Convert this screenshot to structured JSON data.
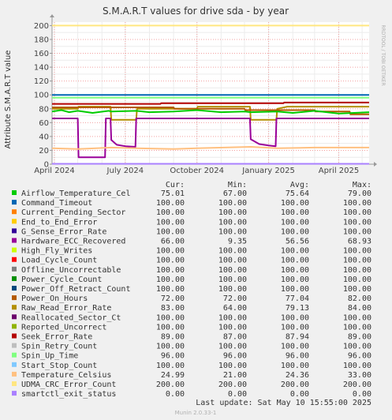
{
  "chart_data": {
    "type": "line",
    "title": "S.M.A.R.T values for drive sda - by year",
    "ylabel": "Attribute S.M.A.R.T value",
    "side_label": "RRDTOOL / TOBI OETIKER",
    "ylim": [
      0,
      205
    ],
    "y_ticks": [
      "0",
      "20",
      "40",
      "60",
      "80",
      "100",
      "120",
      "140",
      "160",
      "180",
      "200"
    ],
    "x_ticks": [
      "April 2024",
      "July 2024",
      "October 2024",
      "January 2025",
      "April 2025"
    ],
    "x_range": [
      "2024-03-29",
      "2025-05-10"
    ],
    "x_tick_dates": [
      "2024-04-01",
      "2024-07-01",
      "2024-10-01",
      "2025-01-01",
      "2025-04-01"
    ],
    "columns": [
      "Cur:",
      "Min:",
      "Avg:",
      "Max:"
    ],
    "series": [
      {
        "name": "Airflow_Temperature_Cel",
        "color": "#00cc00",
        "cur": "75.01",
        "min": "67.00",
        "avg": "75.64",
        "max": "79.00"
      },
      {
        "name": "Command_Timeout",
        "color": "#0066b3",
        "cur": "100.00",
        "min": "100.00",
        "avg": "100.00",
        "max": "100.00"
      },
      {
        "name": "Current_Pending_Sector",
        "color": "#ff8000",
        "cur": "100.00",
        "min": "100.00",
        "avg": "100.00",
        "max": "100.00"
      },
      {
        "name": "End_to_End_Error",
        "color": "#ffcc00",
        "cur": "100.00",
        "min": "100.00",
        "avg": "100.00",
        "max": "100.00"
      },
      {
        "name": "G_Sense_Error_Rate",
        "color": "#330099",
        "cur": "100.00",
        "min": "100.00",
        "avg": "100.00",
        "max": "100.00"
      },
      {
        "name": "Hardware_ECC_Recovered",
        "color": "#990099",
        "cur": "66.00",
        "min": "9.35",
        "avg": "56.56",
        "max": "68.93"
      },
      {
        "name": "High_Fly_Writes",
        "color": "#ccff00",
        "cur": "100.00",
        "min": "100.00",
        "avg": "100.00",
        "max": "100.00"
      },
      {
        "name": "Load_Cycle_Count",
        "color": "#ff0000",
        "cur": "100.00",
        "min": "100.00",
        "avg": "100.00",
        "max": "100.00"
      },
      {
        "name": "Offline_Uncorrectable",
        "color": "#808080",
        "cur": "100.00",
        "min": "100.00",
        "avg": "100.00",
        "max": "100.00"
      },
      {
        "name": "Power_Cycle_Count",
        "color": "#008f00",
        "cur": "100.00",
        "min": "100.00",
        "avg": "100.00",
        "max": "100.00"
      },
      {
        "name": "Power_Off_Retract_Count",
        "color": "#00487d",
        "cur": "100.00",
        "min": "100.00",
        "avg": "100.00",
        "max": "100.00"
      },
      {
        "name": "Power_On_Hours",
        "color": "#b35a00",
        "cur": "72.00",
        "min": "72.00",
        "avg": "77.04",
        "max": "82.00"
      },
      {
        "name": "Raw_Read_Error_Rate",
        "color": "#b38f00",
        "cur": "83.00",
        "min": "64.00",
        "avg": "79.13",
        "max": "84.00"
      },
      {
        "name": "Reallocated_Sector_Ct",
        "color": "#6b006b",
        "cur": "100.00",
        "min": "100.00",
        "avg": "100.00",
        "max": "100.00"
      },
      {
        "name": "Reported_Uncorrect",
        "color": "#8fb300",
        "cur": "100.00",
        "min": "100.00",
        "avg": "100.00",
        "max": "100.00"
      },
      {
        "name": "Seek_Error_Rate",
        "color": "#b30000",
        "cur": "89.00",
        "min": "87.00",
        "avg": "87.94",
        "max": "89.00"
      },
      {
        "name": "Spin_Retry_Count",
        "color": "#bebebe",
        "cur": "100.00",
        "min": "100.00",
        "avg": "100.00",
        "max": "100.00"
      },
      {
        "name": "Spin_Up_Time",
        "color": "#80ff80",
        "cur": "96.00",
        "min": "96.00",
        "avg": "96.00",
        "max": "96.00"
      },
      {
        "name": "Start_Stop_Count",
        "color": "#80c9ff",
        "cur": "100.00",
        "min": "100.00",
        "avg": "100.00",
        "max": "100.00"
      },
      {
        "name": "Temperature_Celsius",
        "color": "#ffc080",
        "cur": "24.99",
        "min": "21.00",
        "avg": "24.36",
        "max": "33.00"
      },
      {
        "name": "UDMA_CRC_Error_Count",
        "color": "#ffe680",
        "cur": "200.00",
        "min": "200.00",
        "avg": "200.00",
        "max": "200.00"
      },
      {
        "name": "smartctl_exit_status",
        "color": "#aa80ff",
        "cur": "0.00",
        "min": "0.00",
        "avg": "0.00",
        "max": "0.00"
      }
    ],
    "plotted_lines": [
      {
        "series": "UDMA_CRC_Error_Count",
        "points": [
          [
            "2024-03-29",
            200
          ],
          [
            "2025-05-10",
            200
          ]
        ]
      },
      {
        "series": "Command_Timeout",
        "points": [
          [
            "2024-03-29",
            100
          ],
          [
            "2025-05-10",
            100
          ]
        ]
      },
      {
        "series": "Spin_Up_Time",
        "points": [
          [
            "2024-03-29",
            96
          ],
          [
            "2025-05-10",
            96
          ]
        ]
      },
      {
        "series": "Seek_Error_Rate",
        "points": [
          [
            "2024-03-29",
            87
          ],
          [
            "2024-08-15",
            87
          ],
          [
            "2024-08-16",
            88
          ],
          [
            "2025-01-20",
            88
          ],
          [
            "2025-01-21",
            89
          ],
          [
            "2025-05-10",
            89
          ]
        ]
      },
      {
        "series": "Raw_Read_Error_Rate",
        "points": [
          [
            "2024-03-29",
            80
          ],
          [
            "2024-05-01",
            80
          ],
          [
            "2024-05-02",
            83
          ],
          [
            "2024-06-12",
            83
          ],
          [
            "2024-06-13",
            64
          ],
          [
            "2024-07-15",
            64
          ],
          [
            "2024-07-16",
            80
          ],
          [
            "2024-10-01",
            80
          ],
          [
            "2024-10-02",
            83
          ],
          [
            "2024-12-08",
            83
          ],
          [
            "2024-12-09",
            64
          ],
          [
            "2025-01-11",
            64
          ],
          [
            "2025-01-12",
            80
          ],
          [
            "2025-01-25",
            83
          ],
          [
            "2025-05-10",
            83
          ]
        ]
      },
      {
        "series": "Power_On_Hours",
        "points": [
          [
            "2024-03-29",
            82
          ],
          [
            "2024-09-01",
            82
          ],
          [
            "2024-09-02",
            80
          ],
          [
            "2024-12-01",
            80
          ],
          [
            "2024-12-02",
            78
          ],
          [
            "2025-03-01",
            78
          ],
          [
            "2025-03-02",
            76
          ],
          [
            "2025-04-15",
            76
          ],
          [
            "2025-04-16",
            72
          ],
          [
            "2025-05-10",
            72
          ]
        ]
      },
      {
        "series": "Airflow_Temperature_Cel",
        "points": [
          [
            "2024-03-29",
            76
          ],
          [
            "2024-04-10",
            78
          ],
          [
            "2024-04-20",
            75
          ],
          [
            "2024-05-01",
            77
          ],
          [
            "2024-05-20",
            74
          ],
          [
            "2024-06-10",
            77
          ],
          [
            "2024-06-13",
            76
          ],
          [
            "2024-07-15",
            77
          ],
          [
            "2024-08-01",
            75
          ],
          [
            "2024-09-01",
            76
          ],
          [
            "2024-10-01",
            78
          ],
          [
            "2024-11-01",
            75
          ],
          [
            "2024-12-01",
            76
          ],
          [
            "2024-12-09",
            75
          ],
          [
            "2025-01-12",
            76
          ],
          [
            "2025-02-01",
            74
          ],
          [
            "2025-03-01",
            77
          ],
          [
            "2025-04-01",
            73
          ],
          [
            "2025-05-10",
            75
          ]
        ]
      },
      {
        "series": "Hardware_ECC_Recovered",
        "points": [
          [
            "2024-03-29",
            66
          ],
          [
            "2024-05-01",
            66
          ],
          [
            "2024-05-02",
            10
          ],
          [
            "2024-06-05",
            10
          ],
          [
            "2024-06-06",
            66
          ],
          [
            "2024-06-12",
            66
          ],
          [
            "2024-06-13",
            35
          ],
          [
            "2024-06-20",
            28
          ],
          [
            "2024-07-01",
            26
          ],
          [
            "2024-07-14",
            25
          ],
          [
            "2024-07-15",
            66
          ],
          [
            "2024-12-08",
            66
          ],
          [
            "2024-12-09",
            36
          ],
          [
            "2024-12-20",
            29
          ],
          [
            "2025-01-01",
            27
          ],
          [
            "2025-01-10",
            26
          ],
          [
            "2025-01-11",
            66
          ],
          [
            "2025-05-10",
            66
          ]
        ]
      },
      {
        "series": "Temperature_Celsius",
        "points": [
          [
            "2024-03-29",
            23
          ],
          [
            "2024-05-01",
            22
          ],
          [
            "2024-06-13",
            24
          ],
          [
            "2024-07-15",
            23
          ],
          [
            "2024-09-01",
            22
          ],
          [
            "2024-10-01",
            23
          ],
          [
            "2024-12-09",
            25
          ],
          [
            "2025-01-12",
            23
          ],
          [
            "2025-03-01",
            24
          ],
          [
            "2025-05-10",
            24
          ]
        ]
      },
      {
        "series": "smartctl_exit_status",
        "points": [
          [
            "2024-03-29",
            0
          ],
          [
            "2025-05-10",
            0
          ]
        ]
      }
    ]
  },
  "footer": {
    "last_update": "Last update:  Sat May 10 15:55:00 2025",
    "generator": "Munin 2.0.33-1"
  }
}
